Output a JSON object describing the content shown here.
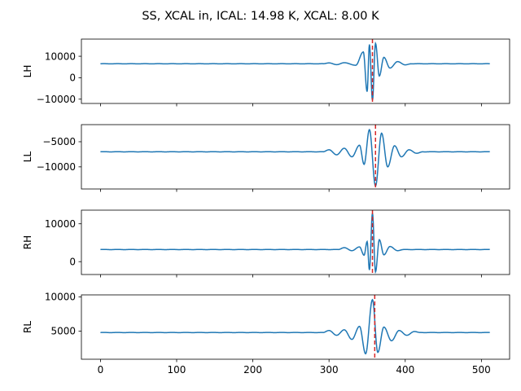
{
  "figure": {
    "suptitle": "SS, XCAL in, ICAL: 14.98 K, XCAL: 8.00 K"
  },
  "colors": {
    "series": "#1f77b4",
    "marker_line": "#d62728",
    "axes": "#000000",
    "background": "#ffffff"
  },
  "chart_data": [
    {
      "type": "line",
      "ylabel": "LH",
      "xlim": [
        -25,
        537
      ],
      "ylim": [
        -12000,
        18000
      ],
      "x_ticks": [
        0,
        100,
        200,
        300,
        400,
        500
      ],
      "y_ticks": [
        -10000,
        0,
        10000
      ],
      "y_tick_labels": [
        "−10000",
        "0",
        "10000"
      ],
      "show_x_tick_labels": false,
      "marker_x": 357,
      "baseline": 6500,
      "x_range": [
        0,
        511
      ],
      "features": [
        {
          "x": 300,
          "value": 6900
        },
        {
          "x": 310,
          "value": 6100
        },
        {
          "x": 320,
          "value": 7000
        },
        {
          "x": 335,
          "value": 5800
        },
        {
          "x": 345,
          "value": 12000
        },
        {
          "x": 350,
          "value": -6500
        },
        {
          "x": 353,
          "value": 15500
        },
        {
          "x": 357,
          "value": -10500
        },
        {
          "x": 361,
          "value": 16000
        },
        {
          "x": 366,
          "value": 800
        },
        {
          "x": 372,
          "value": 9500
        },
        {
          "x": 380,
          "value": 4500
        },
        {
          "x": 390,
          "value": 7500
        },
        {
          "x": 400,
          "value": 6000
        }
      ]
    },
    {
      "type": "line",
      "ylabel": "LL",
      "xlim": [
        -25,
        537
      ],
      "ylim": [
        -14400,
        -1600
      ],
      "x_ticks": [
        0,
        100,
        200,
        300,
        400,
        500
      ],
      "y_ticks": [
        -10000,
        -5000
      ],
      "y_tick_labels": [
        "−10000",
        "−5000"
      ],
      "show_x_tick_labels": false,
      "marker_x": 361,
      "baseline": -7000,
      "x_range": [
        0,
        511
      ],
      "features": [
        {
          "x": 300,
          "value": -6600
        },
        {
          "x": 310,
          "value": -7600
        },
        {
          "x": 320,
          "value": -6300
        },
        {
          "x": 330,
          "value": -8000
        },
        {
          "x": 340,
          "value": -5700
        },
        {
          "x": 346,
          "value": -9500
        },
        {
          "x": 353,
          "value": -2600
        },
        {
          "x": 361,
          "value": -13800
        },
        {
          "x": 369,
          "value": -3300
        },
        {
          "x": 377,
          "value": -10000
        },
        {
          "x": 386,
          "value": -5800
        },
        {
          "x": 395,
          "value": -8000
        },
        {
          "x": 405,
          "value": -6600
        },
        {
          "x": 415,
          "value": -7300
        }
      ]
    },
    {
      "type": "line",
      "ylabel": "RH",
      "xlim": [
        -25,
        537
      ],
      "ylim": [
        -3400,
        13600
      ],
      "x_ticks": [
        0,
        100,
        200,
        300,
        400,
        500
      ],
      "y_ticks": [
        0,
        10000
      ],
      "y_tick_labels": [
        "0",
        "10000"
      ],
      "show_x_tick_labels": false,
      "marker_x": 357,
      "baseline": 3200,
      "x_range": [
        0,
        511
      ],
      "features": [
        {
          "x": 320,
          "value": 3700
        },
        {
          "x": 330,
          "value": 2900
        },
        {
          "x": 340,
          "value": 3900
        },
        {
          "x": 346,
          "value": 1700
        },
        {
          "x": 350,
          "value": 5300
        },
        {
          "x": 353,
          "value": -2200
        },
        {
          "x": 357,
          "value": 12800
        },
        {
          "x": 361,
          "value": -2700
        },
        {
          "x": 366,
          "value": 5800
        },
        {
          "x": 372,
          "value": 1800
        },
        {
          "x": 380,
          "value": 4000
        },
        {
          "x": 390,
          "value": 2900
        }
      ]
    },
    {
      "type": "line",
      "ylabel": "RL",
      "xlim": [
        -25,
        537
      ],
      "ylim": [
        900,
        10300
      ],
      "x_ticks": [
        0,
        100,
        200,
        300,
        400,
        500
      ],
      "x_tick_labels": [
        "0",
        "100",
        "200",
        "300",
        "400",
        "500"
      ],
      "y_ticks": [
        5000,
        10000
      ],
      "y_tick_labels": [
        "5000",
        "10000"
      ],
      "show_x_tick_labels": true,
      "marker_x": 360,
      "baseline": 4800,
      "x_range": [
        0,
        511
      ],
      "features": [
        {
          "x": 300,
          "value": 5100
        },
        {
          "x": 310,
          "value": 4400
        },
        {
          "x": 320,
          "value": 5200
        },
        {
          "x": 330,
          "value": 3800
        },
        {
          "x": 340,
          "value": 5700
        },
        {
          "x": 348,
          "value": 1700
        },
        {
          "x": 357,
          "value": 9600
        },
        {
          "x": 364,
          "value": 1900
        },
        {
          "x": 372,
          "value": 5600
        },
        {
          "x": 382,
          "value": 3600
        },
        {
          "x": 392,
          "value": 5100
        },
        {
          "x": 402,
          "value": 4400
        },
        {
          "x": 412,
          "value": 4950
        }
      ]
    }
  ]
}
